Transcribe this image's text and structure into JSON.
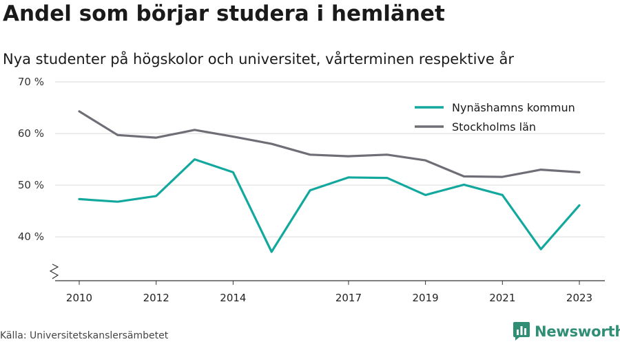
{
  "title": "Andel som börjar studera i hemlänet",
  "subtitle": "Nya studenter på högskolor och universitet, vårterminen respektive år",
  "source": "Källa: Universitetskanslersämbetet",
  "brand": {
    "name": "Newsworthy",
    "icon": "newsworthy-logo-icon",
    "color": "#2f8e74"
  },
  "chart_data": {
    "type": "line",
    "x": [
      2010,
      2011,
      2012,
      2013,
      2014,
      2015,
      2016,
      2017,
      2018,
      2019,
      2020,
      2021,
      2022,
      2023
    ],
    "x_tick_values": [
      2010,
      2012,
      2014,
      2017,
      2019,
      2021,
      2023
    ],
    "x_tick_labels": [
      "2010",
      "2012",
      "2014",
      "2017",
      "2019",
      "2021",
      "2023"
    ],
    "y_tick_values": [
      40,
      50,
      60,
      70
    ],
    "y_tick_labels": [
      "40 %",
      "50 %",
      "60 %",
      "70 %"
    ],
    "ylim": [
      31.5,
      70
    ],
    "xlim": [
      2010,
      2023
    ],
    "axis_break": true,
    "grid": true,
    "legend_position": "top-right",
    "series": [
      {
        "name": "Nynäshamns kommun",
        "color": "#13a89e",
        "values": [
          47.3,
          46.8,
          47.9,
          55.0,
          52.5,
          37.1,
          49.0,
          51.5,
          51.4,
          48.1,
          50.1,
          48.1,
          37.6,
          46.1
        ]
      },
      {
        "name": "Stockholms län",
        "color": "#6e6e76",
        "values": [
          64.3,
          59.7,
          59.2,
          60.7,
          59.4,
          58.0,
          55.9,
          55.6,
          55.9,
          54.8,
          51.7,
          51.6,
          53.0,
          52.5
        ]
      }
    ]
  }
}
